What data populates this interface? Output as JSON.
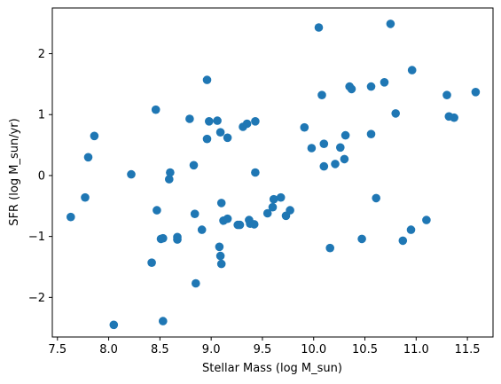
{
  "chart_data": {
    "type": "scatter",
    "title": "",
    "xlabel": "Stellar Mass (log M_sun)",
    "ylabel": "SFR (log M_sun/yr)",
    "xlim": [
      7.45,
      11.75
    ],
    "ylim": [
      -2.65,
      2.75
    ],
    "xticks": [
      7.5,
      8.0,
      8.5,
      9.0,
      9.5,
      10.0,
      10.5,
      11.0,
      11.5
    ],
    "xtick_labels": [
      "7.5",
      "8.0",
      "8.5",
      "9.0",
      "9.5",
      "10.0",
      "10.5",
      "11.0",
      "11.5"
    ],
    "yticks": [
      -2,
      -1,
      0,
      1,
      2
    ],
    "ytick_labels": [
      "−2",
      "−1",
      "0",
      "1",
      "2"
    ],
    "grid": false,
    "marker_color": "#1f77b4",
    "series": [
      {
        "x": [
          7.63,
          7.77,
          7.8,
          7.86,
          8.05,
          8.22,
          8.42,
          8.46,
          8.47,
          8.51,
          8.53,
          8.53,
          8.59,
          8.6,
          8.67,
          8.67,
          8.79,
          8.83,
          8.84,
          8.85,
          8.91,
          8.96,
          8.96,
          8.98,
          9.06,
          9.08,
          9.09,
          9.09,
          9.1,
          9.1,
          9.12,
          9.16,
          9.16,
          9.26,
          9.28,
          9.31,
          9.35,
          9.37,
          9.38,
          9.42,
          9.43,
          9.43,
          9.55,
          9.6,
          9.61,
          9.68,
          9.73,
          9.77,
          9.91,
          9.98,
          10.05,
          10.08,
          10.1,
          10.1,
          10.16,
          10.21,
          10.26,
          10.3,
          10.31,
          10.35,
          10.37,
          10.47,
          10.56,
          10.56,
          10.61,
          10.69,
          10.75,
          10.8,
          10.87,
          10.95,
          10.96,
          11.1,
          11.3,
          11.32,
          11.37,
          11.58
        ],
        "y": [
          -0.68,
          -0.36,
          0.3,
          0.65,
          -2.45,
          0.02,
          -1.43,
          1.08,
          -0.57,
          -1.04,
          -1.03,
          -2.39,
          -0.06,
          0.05,
          -1.05,
          -1.01,
          0.93,
          0.17,
          -0.63,
          -1.77,
          -0.89,
          1.57,
          0.6,
          0.89,
          0.9,
          -1.17,
          0.71,
          -1.32,
          -1.45,
          -0.45,
          -0.74,
          0.62,
          -0.71,
          -0.81,
          -0.81,
          0.8,
          0.85,
          -0.73,
          -0.79,
          -0.8,
          0.89,
          0.05,
          -0.62,
          -0.52,
          -0.39,
          -0.36,
          -0.66,
          -0.57,
          0.79,
          0.45,
          2.43,
          1.32,
          0.52,
          0.15,
          -1.19,
          0.19,
          0.46,
          0.27,
          0.66,
          1.46,
          1.42,
          -1.04,
          1.46,
          0.68,
          -0.37,
          1.53,
          2.49,
          1.02,
          -1.07,
          -0.89,
          1.73,
          -0.73,
          1.32,
          0.97,
          0.95,
          1.37
        ]
      }
    ]
  }
}
